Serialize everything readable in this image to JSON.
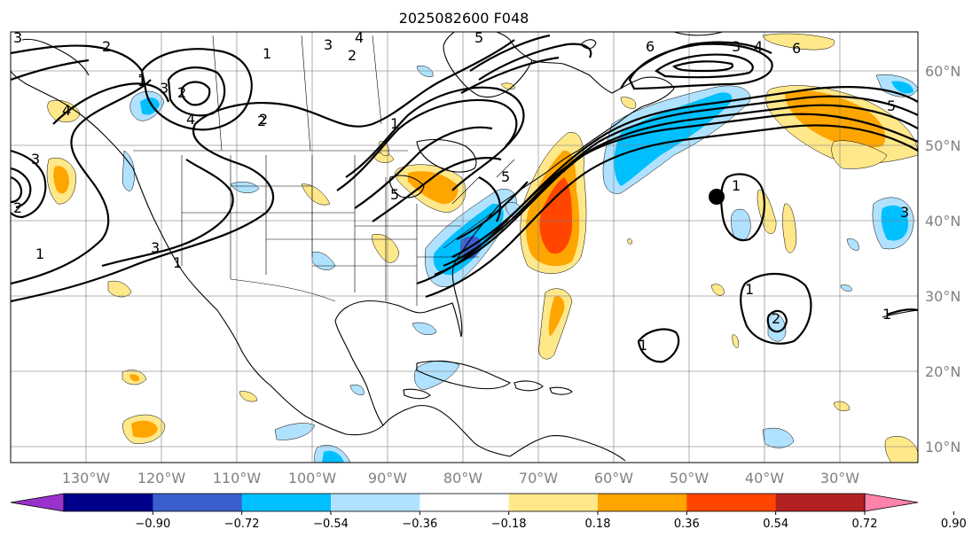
{
  "title": "2025082600 F048",
  "map": {
    "lon_labels": [
      "130°W",
      "120°W",
      "110°W",
      "100°W",
      "90°W",
      "80°W",
      "70°W",
      "60°W",
      "50°W",
      "40°W",
      "30°W"
    ],
    "lat_labels": [
      "60°N",
      "50°N",
      "40°N",
      "30°N",
      "20°N",
      "10°N"
    ],
    "marker_icon": "black-dot-icon"
  },
  "colorbar": {
    "ticks": [
      "−0.90",
      "−0.72",
      "−0.54",
      "−0.36",
      "−0.18",
      "0.18",
      "0.36",
      "0.54",
      "0.72",
      "0.90"
    ],
    "colors": [
      "#9932cc",
      "#00008b",
      "#3a5fcd",
      "#00bfff",
      "#b0e2ff",
      "#ffffff",
      "#ffe88a",
      "#ffa500",
      "#ff4500",
      "#b22222",
      "#ff82ab"
    ]
  },
  "contour_labels": [
    "3",
    "4",
    "2",
    "1",
    "3",
    "2",
    "4",
    "3",
    "6",
    "6",
    "5",
    "3",
    "2",
    "4",
    "2",
    "1",
    "1",
    "1",
    "1",
    "3",
    "1",
    "5",
    "5",
    "3",
    "2",
    "1",
    "1",
    "1",
    "1",
    "2",
    "2",
    "5",
    "4",
    "3"
  ]
}
